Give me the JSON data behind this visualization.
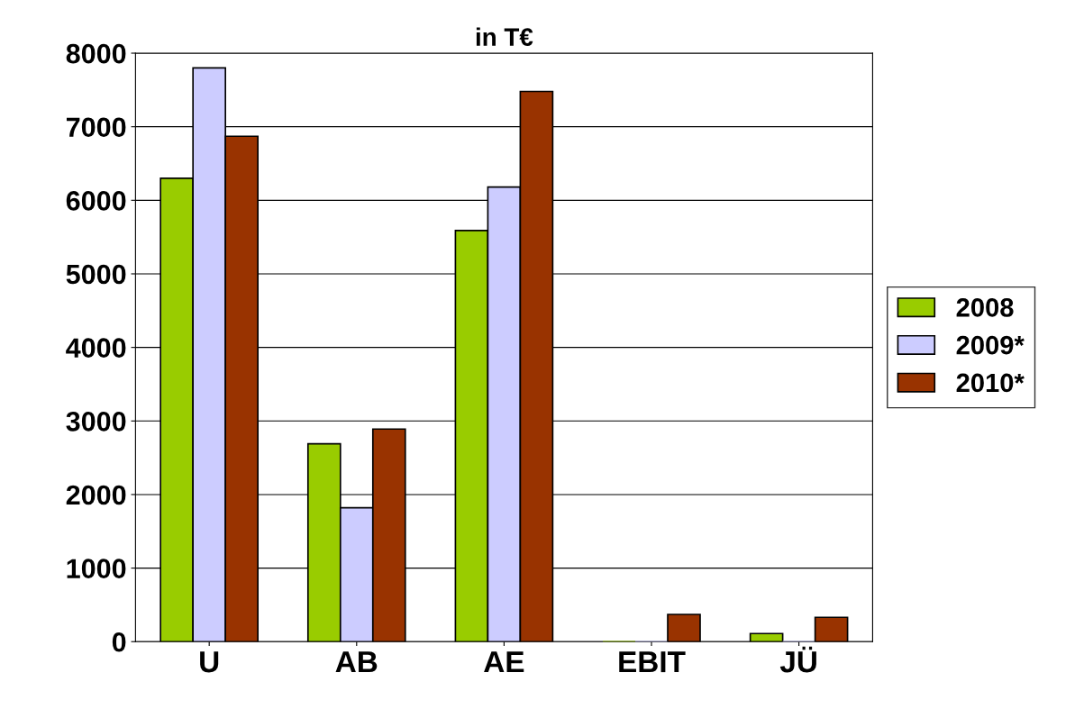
{
  "chart_data": {
    "type": "bar",
    "title": "in T€",
    "categories": [
      "U",
      "AB",
      "AE",
      "EBIT",
      "JÜ"
    ],
    "series": [
      {
        "name": "2008",
        "color": "#99cc00",
        "values": [
          6300,
          2690,
          5590,
          0,
          110
        ]
      },
      {
        "name": "2009*",
        "color": "#ccccff",
        "values": [
          7800,
          1820,
          6180,
          0,
          0
        ]
      },
      {
        "name": "2010*",
        "color": "#993300",
        "values": [
          6870,
          2890,
          7480,
          370,
          330
        ]
      }
    ],
    "ylim": [
      0,
      8000
    ],
    "yticks": [
      0,
      1000,
      2000,
      3000,
      4000,
      5000,
      6000,
      7000,
      8000
    ],
    "grid": "y",
    "legend": "right"
  }
}
